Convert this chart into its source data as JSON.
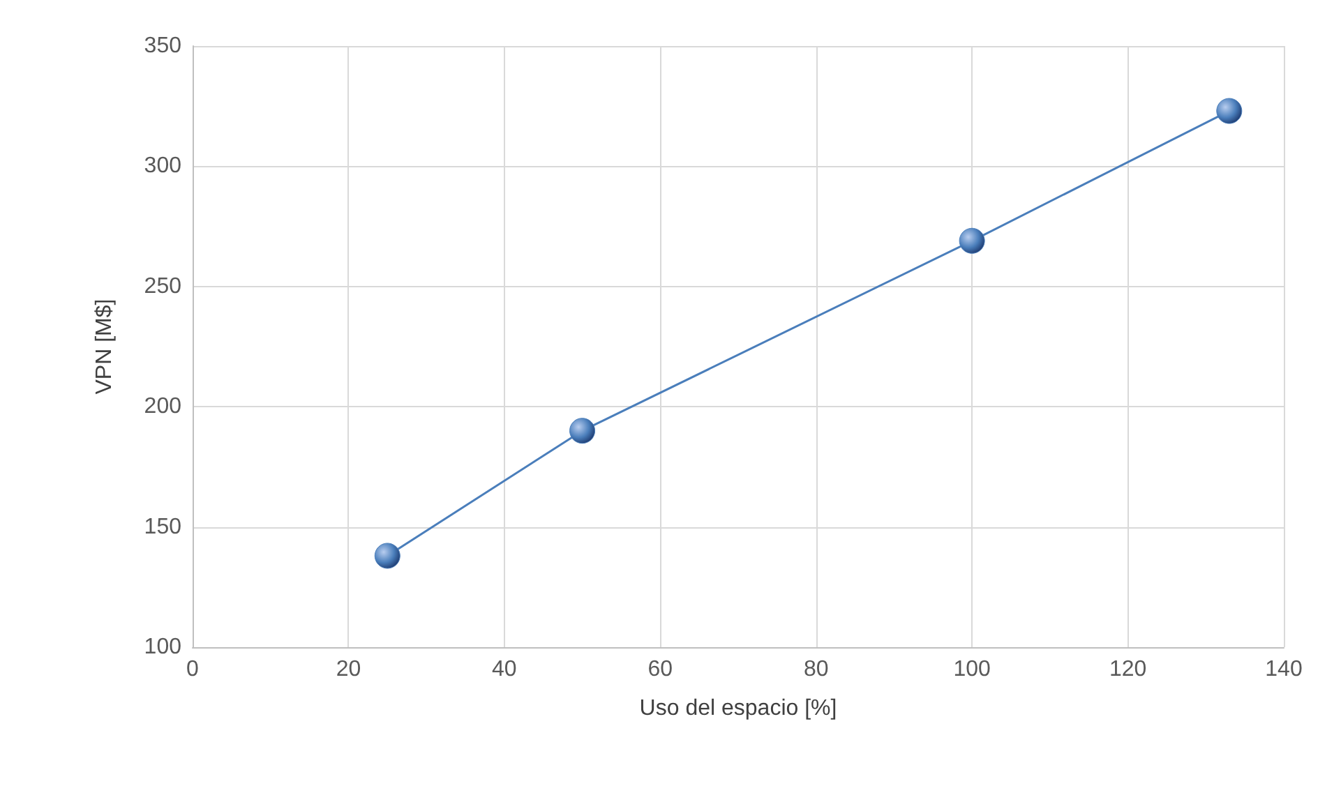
{
  "chart_data": {
    "type": "line",
    "xlabel": "Uso del espacio [%]",
    "ylabel": "VPN [M$]",
    "x": [
      25,
      50,
      100,
      133
    ],
    "series": [
      {
        "color": "#4a7ebb",
        "values": [
          138,
          190,
          269,
          323
        ]
      }
    ],
    "xlim": [
      0,
      140
    ],
    "xticks": [
      0,
      20,
      40,
      60,
      80,
      100,
      120,
      140
    ],
    "ylim": [
      100,
      350
    ],
    "yticks": [
      100,
      150,
      200,
      250,
      300,
      350
    ],
    "grid": true,
    "marker": "circle",
    "line_style": "solid"
  }
}
